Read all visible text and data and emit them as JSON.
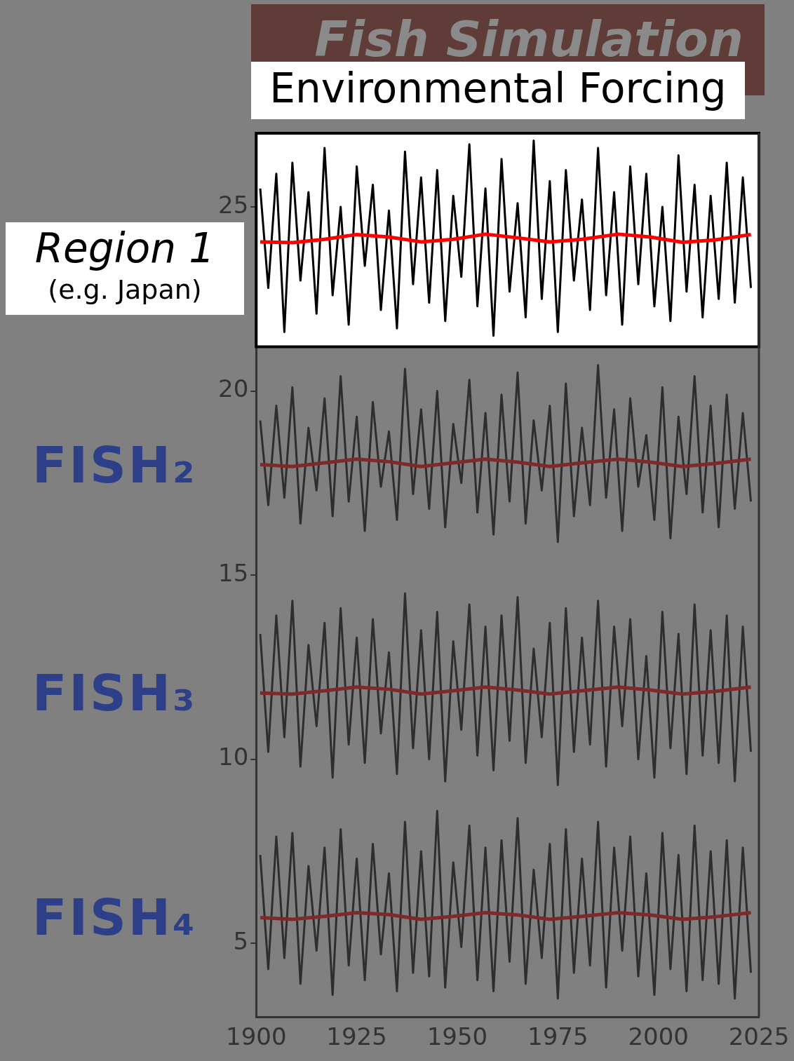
{
  "chart_data": {
    "type": "line",
    "title": "Fish Simulation",
    "subtitle": "Environmental Forcing",
    "annotations": [
      "(e.g. Japan)"
    ],
    "x": [
      1901,
      1903,
      1905,
      1907,
      1909,
      1911,
      1913,
      1915,
      1917,
      1919,
      1921,
      1923,
      1925,
      1927,
      1929,
      1931,
      1933,
      1935,
      1937,
      1939,
      1941,
      1943,
      1945,
      1947,
      1949,
      1951,
      1953,
      1955,
      1957,
      1959,
      1961,
      1963,
      1965,
      1967,
      1969,
      1971,
      1973,
      1975,
      1977,
      1979,
      1981,
      1983,
      1985,
      1987,
      1989,
      1991,
      1993,
      1995,
      1997,
      1999,
      2001,
      2003,
      2005,
      2007,
      2009,
      2011,
      2013,
      2015,
      2017,
      2019,
      2021,
      2023
    ],
    "xlim": [
      1900,
      2025
    ],
    "xticks": [
      1900,
      1925,
      1950,
      1975,
      2000,
      2025
    ],
    "ylim": [
      3,
      27
    ],
    "yticks": [
      5,
      10,
      15,
      20,
      25
    ],
    "legend": false,
    "grid": false,
    "bands": [
      {
        "axis": "y",
        "from": 21.2,
        "to": 27,
        "color": "#ffffff"
      }
    ],
    "series": [
      {
        "name": "Region 1",
        "color": "#000000",
        "values": [
          25.5,
          22.8,
          25.9,
          21.6,
          26.2,
          23.0,
          25.4,
          22.1,
          26.6,
          22.6,
          25.0,
          21.8,
          26.1,
          23.4,
          25.6,
          22.2,
          24.9,
          21.7,
          26.5,
          22.9,
          25.8,
          22.4,
          26.0,
          21.9,
          25.3,
          23.1,
          26.7,
          22.3,
          25.5,
          21.5,
          26.3,
          22.7,
          25.1,
          22.0,
          26.8,
          22.5,
          25.7,
          21.6,
          26.0,
          23.0,
          25.2,
          22.2,
          26.6,
          22.6,
          25.4,
          21.8,
          26.1,
          22.9,
          25.9,
          22.3,
          25.0,
          21.9,
          26.4,
          22.7,
          25.6,
          22.0,
          25.3,
          22.5,
          26.2,
          22.4,
          25.8,
          22.8
        ]
      },
      {
        "color": "#ff0000",
        "x": [
          1901,
          1909,
          1917,
          1925,
          1933,
          1941,
          1949,
          1957,
          1965,
          1973,
          1981,
          1990,
          1998,
          2006,
          2014,
          2023
        ],
        "values": [
          24.05,
          24.03,
          24.12,
          24.25,
          24.18,
          24.05,
          24.12,
          24.26,
          24.16,
          24.05,
          24.12,
          24.26,
          24.18,
          24.04,
          24.1,
          24.25
        ]
      },
      {
        "name": "FISH₂",
        "color": "#2e2e2e",
        "values": [
          19.2,
          16.9,
          19.6,
          17.1,
          20.1,
          16.4,
          19.0,
          17.3,
          19.8,
          16.6,
          20.4,
          17.0,
          19.3,
          16.2,
          19.7,
          17.4,
          18.9,
          16.5,
          20.6,
          17.2,
          19.5,
          16.8,
          20.0,
          16.3,
          19.1,
          17.5,
          20.3,
          16.7,
          19.4,
          16.1,
          19.9,
          17.0,
          20.5,
          16.4,
          19.2,
          17.3,
          19.6,
          15.9,
          20.2,
          16.6,
          19.0,
          16.9,
          20.7,
          17.1,
          19.5,
          16.2,
          19.8,
          17.4,
          18.8,
          16.5,
          20.1,
          16.0,
          19.3,
          17.2,
          20.4,
          16.7,
          19.6,
          16.3,
          19.9,
          16.8,
          19.4,
          17.0
        ]
      },
      {
        "color": "#7f2a2a",
        "x": [
          1901,
          1909,
          1917,
          1925,
          1933,
          1941,
          1949,
          1957,
          1965,
          1973,
          1981,
          1990,
          1998,
          2006,
          2014,
          2023
        ],
        "values": [
          18.0,
          17.95,
          18.05,
          18.15,
          18.08,
          17.95,
          18.05,
          18.15,
          18.07,
          17.95,
          18.05,
          18.15,
          18.07,
          17.95,
          18.03,
          18.15
        ]
      },
      {
        "name": "FISH₃",
        "color": "#2e2e2e",
        "values": [
          13.4,
          10.2,
          13.9,
          10.6,
          14.3,
          9.8,
          13.1,
          10.9,
          13.7,
          9.5,
          14.1,
          10.4,
          13.3,
          9.9,
          13.8,
          10.7,
          12.9,
          9.6,
          14.5,
          10.3,
          13.5,
          10.0,
          14.0,
          9.4,
          13.2,
          10.8,
          14.2,
          10.1,
          13.6,
          9.7,
          13.9,
          10.5,
          14.4,
          9.9,
          13.0,
          10.6,
          13.7,
          9.3,
          14.1,
          10.2,
          13.3,
          10.4,
          14.3,
          9.8,
          13.6,
          10.9,
          13.8,
          10.0,
          12.8,
          9.5,
          14.0,
          10.3,
          13.4,
          9.6,
          14.2,
          10.1,
          13.5,
          9.9,
          13.9,
          9.4,
          13.6,
          10.2
        ]
      },
      {
        "color": "#7f2a2a",
        "x": [
          1901,
          1909,
          1917,
          1925,
          1933,
          1941,
          1949,
          1957,
          1965,
          1973,
          1981,
          1990,
          1998,
          2006,
          2014,
          2023
        ],
        "values": [
          11.8,
          11.77,
          11.86,
          11.96,
          11.9,
          11.77,
          11.86,
          11.96,
          11.88,
          11.77,
          11.86,
          11.96,
          11.88,
          11.77,
          11.84,
          11.96
        ]
      },
      {
        "name": "FISH₄",
        "color": "#2e2e2e",
        "values": [
          7.4,
          4.3,
          7.9,
          4.6,
          8.0,
          3.9,
          7.1,
          4.8,
          7.6,
          3.6,
          8.1,
          4.4,
          7.3,
          4.0,
          7.7,
          4.7,
          6.9,
          3.7,
          8.3,
          4.2,
          7.5,
          4.1,
          8.6,
          3.8,
          7.2,
          4.9,
          8.2,
          4.0,
          7.6,
          3.7,
          7.8,
          4.5,
          8.4,
          3.9,
          7.0,
          4.6,
          7.7,
          3.5,
          8.1,
          4.2,
          7.3,
          4.4,
          8.3,
          3.8,
          7.6,
          4.8,
          7.9,
          4.1,
          6.9,
          3.6,
          8.0,
          4.3,
          7.4,
          3.7,
          8.2,
          4.0,
          7.5,
          3.9,
          7.8,
          3.5,
          7.6,
          4.2
        ]
      },
      {
        "color": "#7f2a2a",
        "x": [
          1901,
          1909,
          1917,
          1925,
          1933,
          1941,
          1949,
          1957,
          1965,
          1973,
          1981,
          1990,
          1998,
          2006,
          2014,
          2023
        ],
        "values": [
          5.7,
          5.65,
          5.73,
          5.83,
          5.78,
          5.65,
          5.73,
          5.83,
          5.77,
          5.65,
          5.73,
          5.83,
          5.77,
          5.65,
          5.72,
          5.83
        ]
      }
    ]
  }
}
